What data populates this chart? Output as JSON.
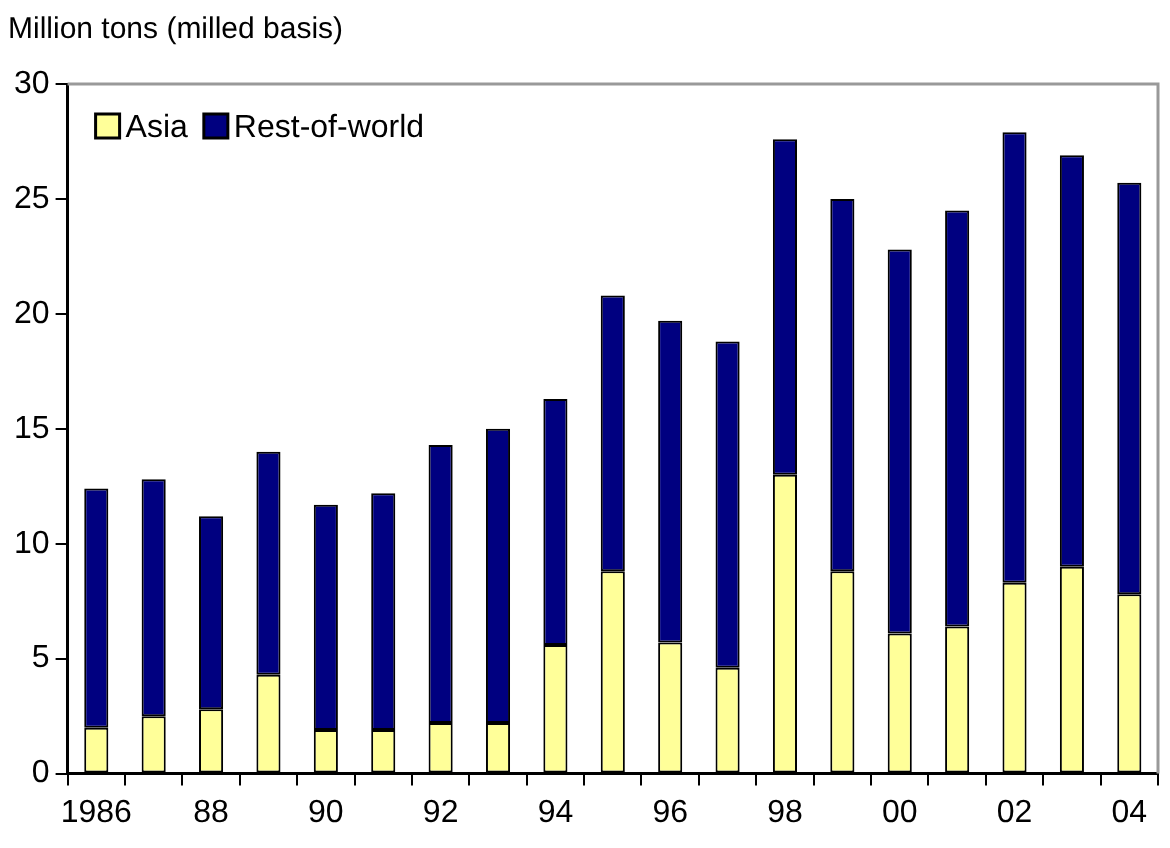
{
  "chart_data": {
    "type": "bar",
    "stacked": true,
    "ylabel": "Million tons (milled basis)",
    "categories": [
      "1986",
      null,
      "88",
      null,
      "90",
      null,
      "92",
      null,
      "94",
      null,
      "96",
      null,
      "98",
      null,
      "00",
      null,
      "02",
      null,
      "04"
    ],
    "series": [
      {
        "name": "Asia",
        "color": "#ffff99",
        "values": [
          2.0,
          2.5,
          2.8,
          4.3,
          1.9,
          1.9,
          2.2,
          2.2,
          5.6,
          8.8,
          5.7,
          4.6,
          13.0,
          8.8,
          6.1,
          6.4,
          8.3,
          9.0,
          7.8
        ]
      },
      {
        "name": "Rest-of-world",
        "color": "#000080",
        "values": [
          10.4,
          10.3,
          8.4,
          9.7,
          9.8,
          10.3,
          12.1,
          12.8,
          10.7,
          12.0,
          14.0,
          14.2,
          14.6,
          16.2,
          16.7,
          18.1,
          19.6,
          17.9,
          17.9
        ]
      }
    ],
    "ylim": [
      0,
      30
    ],
    "yticks": [
      0,
      5,
      10,
      15,
      20,
      25,
      30
    ],
    "grid": false,
    "legend": "top left"
  }
}
